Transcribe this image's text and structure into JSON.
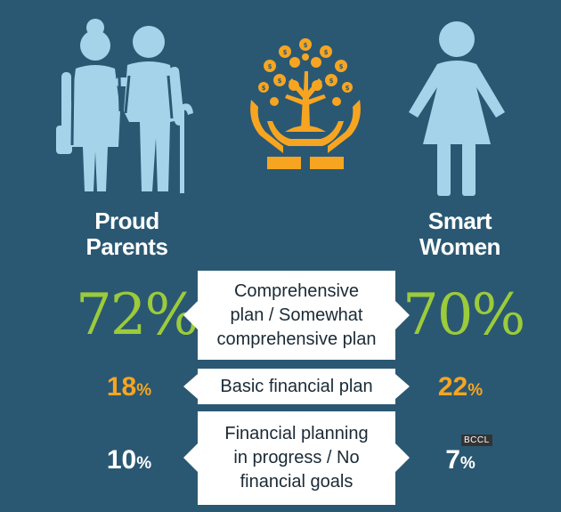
{
  "groups": {
    "left": {
      "line1": "Proud",
      "line2": "Parents"
    },
    "right": {
      "line1": "Smart",
      "line2": "Women"
    }
  },
  "rows": [
    {
      "label_lines": [
        "Comprehensive",
        "plan / Somewhat",
        "comprehensive plan"
      ],
      "parents_value": "72",
      "women_value": "70",
      "unit": "%"
    },
    {
      "label_lines": [
        "Basic financial plan"
      ],
      "parents_value": "18",
      "women_value": "22",
      "unit": "%"
    },
    {
      "label_lines": [
        "Financial planning",
        "in progress / No",
        "financial goals"
      ],
      "parents_value": "10",
      "women_value": "7",
      "unit": "%"
    }
  ],
  "watermark": "BCCL",
  "colors": {
    "background": "#2a5873",
    "icon_blue": "#a5d3ea",
    "icon_orange": "#f7a521",
    "accent_green": "#9ccb3b",
    "accent_orange": "#f7a521",
    "box": "#ffffff"
  },
  "icons": [
    "elderly-couple-icon",
    "money-tree-in-hands-icon",
    "woman-icon"
  ]
}
